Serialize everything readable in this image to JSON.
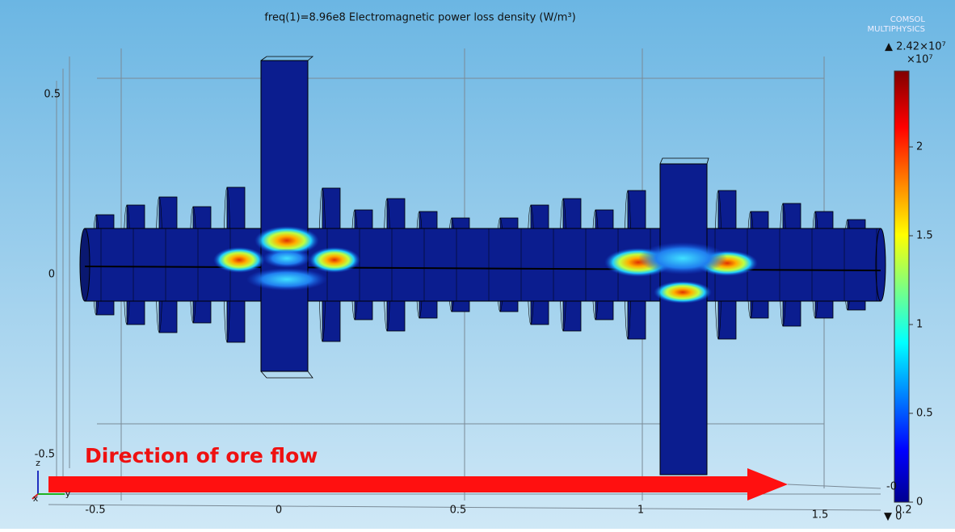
{
  "header": {
    "title": "freq(1)=8.96e8  Electromagnetic power loss density (W/m³)",
    "logo": [
      "COMSOL",
      "MULTIPHYSICS"
    ]
  },
  "colorbar": {
    "max_label": "▲ 2.42×10⁷",
    "scale_label": "×10⁷",
    "ticks": [
      "2",
      "1.5",
      "1",
      "0.5",
      "0"
    ],
    "min_label": "▼ 0"
  },
  "axes": {
    "x_ticks": [
      "-0.5",
      "0",
      "0.5",
      "1",
      "1.5"
    ],
    "z_ticks": [
      "0.5",
      "0",
      "-0.5"
    ],
    "y_ticks": [
      "0.2",
      "-0"
    ],
    "triad": [
      "z",
      "x",
      "y"
    ]
  },
  "annotation": "Direction of ore flow"
}
